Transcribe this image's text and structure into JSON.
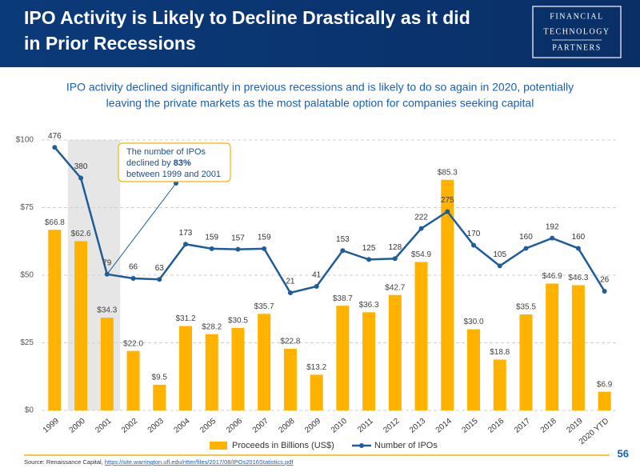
{
  "header": {
    "title_lines": [
      "IPO Activity is Likely to Decline Drastically as it did",
      "in Prior Recessions"
    ],
    "logo": [
      "FINANCIAL",
      "TECHNOLOGY",
      "PARTNERS"
    ]
  },
  "subtitle_lines": [
    "IPO activity declined significantly in previous recessions and is likely to do so again in 2020, potentially",
    "leaving the private markets as the most palatable option for companies seeking capital"
  ],
  "chart_data": {
    "type": "bar",
    "categories": [
      "1999",
      "2000",
      "2001",
      "2002",
      "2003",
      "2004",
      "2005",
      "2006",
      "2007",
      "2008",
      "2009",
      "2010",
      "2011",
      "2012",
      "2013",
      "2014",
      "2015",
      "2016",
      "2017",
      "2018",
      "2019",
      "2020 YTD"
    ],
    "series": [
      {
        "name": "Proceeds in Billions (US$)",
        "type": "bar",
        "color": "#ffb300",
        "values": [
          66.8,
          62.6,
          34.3,
          22.0,
          9.5,
          31.2,
          28.2,
          30.5,
          35.7,
          22.8,
          13.2,
          38.7,
          36.3,
          42.7,
          54.9,
          85.3,
          30.0,
          18.8,
          35.5,
          46.9,
          46.3,
          6.9
        ],
        "value_labels": [
          "$66.8",
          "$62.6",
          "$34.3",
          "$22.0",
          "$9.5",
          "$31.2",
          "$28.2",
          "$30.5",
          "$35.7",
          "$22.8",
          "$13.2",
          "$38.7",
          "$36.3",
          "$42.7",
          "$54.9",
          "$85.3",
          "$30.0",
          "$18.8",
          "$35.5",
          "$46.9",
          "$46.3",
          "$6.9"
        ]
      },
      {
        "name": "Number of IPOs",
        "type": "line",
        "axis": "y2",
        "color": "#1f5c99",
        "values": [
          476,
          380,
          79,
          66,
          63,
          173,
          159,
          157,
          159,
          21,
          41,
          153,
          125,
          128,
          222,
          275,
          170,
          105,
          160,
          192,
          160,
          26
        ]
      }
    ],
    "ylim": [
      0,
      100
    ],
    "yticks": [
      {
        "value": 0,
        "label": "$0"
      },
      {
        "value": 25,
        "label": "$25"
      },
      {
        "value": 50,
        "label": "$50"
      },
      {
        "value": 75,
        "label": "$75"
      },
      {
        "value": 100,
        "label": "$100"
      }
    ],
    "y2lim": [
      -347,
      499
    ],
    "grid": true,
    "legend": "bottom",
    "highlight_range": [
      "2000",
      "2001"
    ],
    "annotation": {
      "lines": [
        "The number of IPOs",
        "declined by ",
        "83%",
        "between 1999 and 2001"
      ]
    }
  },
  "footer": {
    "source_label": "Source:  Renaissance Capital, ",
    "source_url": "https://site.warrington.ufl.edu/ritter/files/2017/08/IPOs2016Statistics.pdf",
    "page": "56"
  }
}
